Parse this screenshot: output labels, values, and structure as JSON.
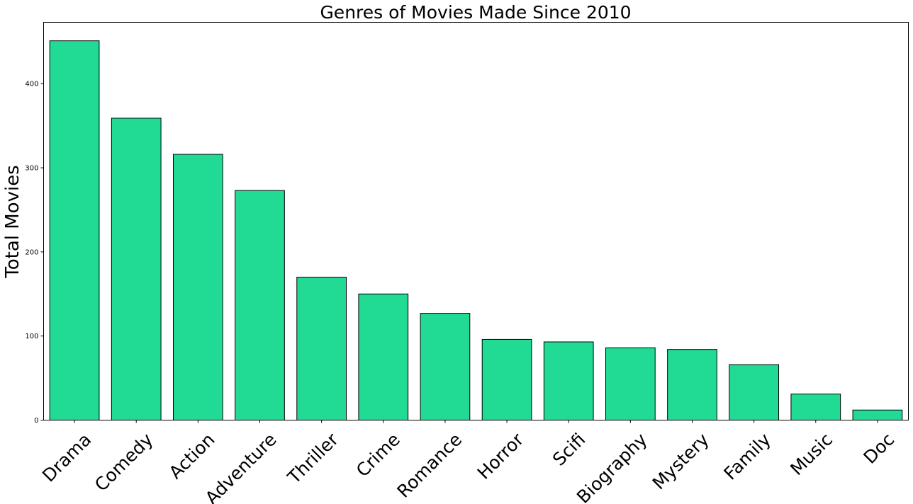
{
  "chart_data": {
    "type": "bar",
    "title": "Genres of Movies Made Since 2010",
    "xlabel": "",
    "ylabel": "Total Movies",
    "categories": [
      "Drama",
      "Comedy",
      "Action",
      "Adventure",
      "Thriller",
      "Crime",
      "Romance",
      "Horror",
      "Scifi",
      "Biography",
      "Mystery",
      "Family",
      "Music",
      "Doc"
    ],
    "values": [
      451,
      359,
      316,
      273,
      170,
      150,
      127,
      96,
      93,
      86,
      84,
      66,
      31,
      12
    ],
    "ylim": [
      0,
      473
    ],
    "yticks": [
      0,
      100,
      200,
      300,
      400
    ],
    "grid": false,
    "bar_color": "#21db94",
    "edge_color": "#000000"
  }
}
